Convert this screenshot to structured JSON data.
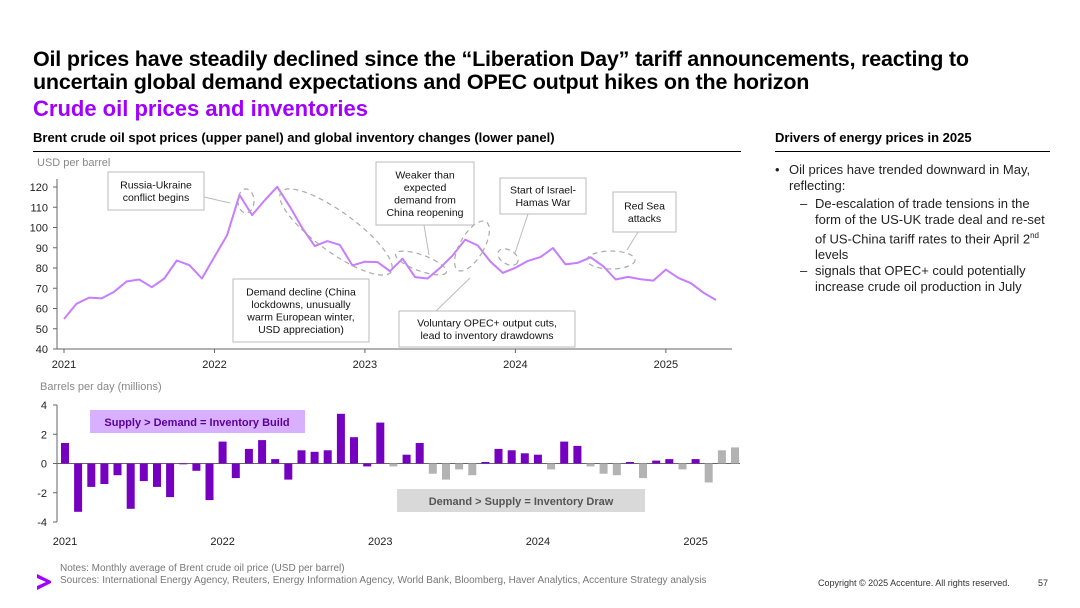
{
  "header": {
    "title": "Oil prices have steadily declined since the “Liberation Day” tariff announcements, reacting to uncertain global demand expectations and OPEC output hikes on the horizon",
    "subtitle": "Crude oil prices and inventories"
  },
  "left_section": {
    "heading": "Brent crude oil spot prices (upper panel) and global inventory changes (lower panel)",
    "upper_unit": "USD per barrel",
    "lower_unit": "Barrels per day (millions)"
  },
  "right_section": {
    "heading": "Drivers of energy prices in 2025",
    "bullet": "Oil prices have trended downward in May, reflecting:",
    "sub1_pre": "De-escalation of trade tensions in the form of the US-UK trade deal and re-set of US-China tariff rates to their April 2",
    "sub1_sup": "nd",
    "sub1_post": " levels",
    "sub2": "signals that OPEC+ could potentially increase crude oil production in July",
    "dash": "–"
  },
  "footer": {
    "notes": "Notes: Monthly average of Brent crude oil price (USD per barrel)",
    "sources": "Sources: International Energy Agency, Reuters, Energy Information Agency, World Bank, Bloomberg, Haver Analytics, Accenture Strategy analysis",
    "copyright": "Copyright © 2025 Accenture. All rights reserved.",
    "page": "57"
  },
  "colors": {
    "accent": "#a100ff",
    "line": "#c77dff",
    "bar_actual": "#7500c0",
    "bar_forecast": "#b3b3b3"
  },
  "chart_data": [
    {
      "type": "line",
      "name": "brent-price",
      "ylabel": "USD per barrel",
      "ylim": [
        40,
        120
      ],
      "yticks": [
        40,
        50,
        60,
        70,
        80,
        90,
        100,
        110,
        120
      ],
      "xticks": [
        "2021",
        "2022",
        "2023",
        "2024",
        "2025"
      ],
      "start": "2021-01",
      "values": [
        54.8,
        62.3,
        65.4,
        65,
        68.3,
        73.4,
        74.3,
        70.5,
        74.8,
        83.7,
        81.4,
        74.8,
        85.6,
        96.1,
        116.1,
        106.1,
        113.4,
        120.1,
        110.4,
        99.8,
        90.8,
        93.3,
        91.4,
        81.3,
        83.1,
        82.9,
        78.4,
        84.6,
        75.5,
        74.8,
        80.1,
        86.2,
        94,
        91.1,
        83.2,
        77.6,
        80.1,
        83.5,
        85.4,
        89.9,
        81.8,
        82.6,
        85.3,
        80.9,
        74.3,
        75.6,
        74.4,
        73.8,
        79.2,
        75.1,
        72.5,
        67.8,
        64.2
      ],
      "annotations": [
        {
          "text": [
            "Russia-Ukraine",
            "conflict begins"
          ]
        },
        {
          "text": [
            "Demand decline (China",
            "lockdowns, unusually",
            "warm European winter,",
            "USD appreciation)"
          ]
        },
        {
          "text": [
            "Weaker than",
            "expected",
            "demand from",
            "China reopening"
          ]
        },
        {
          "text": [
            "Voluntary OPEC+ output cuts,",
            "lead to inventory drawdowns"
          ]
        },
        {
          "text": [
            "Start of Israel-",
            "Hamas War"
          ]
        },
        {
          "text": [
            "Red Sea",
            "attacks"
          ]
        }
      ]
    },
    {
      "type": "bar",
      "name": "inventory-change",
      "ylabel": "Barrels per day (millions)",
      "ylim": [
        -4,
        4
      ],
      "yticks": [
        -4,
        -2,
        0,
        2,
        4
      ],
      "xticks": [
        "2021",
        "2022",
        "2023",
        "2024",
        "2025"
      ],
      "start": "2021-01",
      "values": [
        1.4,
        -3.3,
        -1.6,
        -1.4,
        -0.8,
        -3.1,
        -1.2,
        -1.6,
        -2.3,
        0,
        -0.5,
        -2.5,
        1.5,
        -1,
        1,
        1.6,
        0.3,
        -1.1,
        0.9,
        0.8,
        0.9,
        3.4,
        1.8,
        -0.2,
        2.8,
        -0.2,
        0.6,
        1.4,
        -0.7,
        -1.1,
        -0.4,
        -0.8,
        0.1,
        1,
        0.9,
        0.7,
        0.6,
        -0.4,
        1.5,
        1.2,
        -0.2,
        -0.7,
        -0.8,
        0.1,
        -1,
        0.2,
        0.3,
        -0.4,
        0.3,
        -1.3,
        0.9,
        1.1
      ],
      "forecast_months": [
        25,
        28,
        29,
        30,
        31,
        37,
        40,
        41,
        42,
        44,
        47,
        49,
        50,
        51
      ],
      "labels": {
        "build": "Supply > Demand = Inventory Build",
        "draw": "Demand > Supply = Inventory Draw"
      }
    }
  ]
}
